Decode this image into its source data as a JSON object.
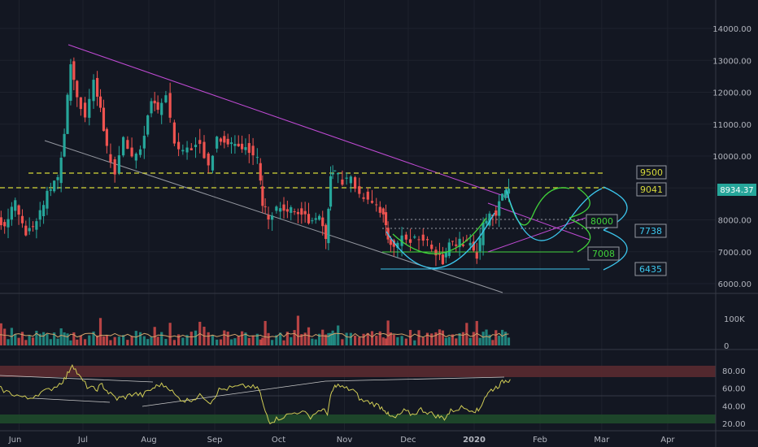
{
  "chart_data": [
    {
      "type": "candlestick",
      "panel": "price",
      "x": [
        "2019-05-21",
        "2019-05-26",
        "2019-05-31",
        "2019-06-05",
        "2019-06-10",
        "2019-06-15",
        "2019-06-20",
        "2019-06-23",
        "2019-06-26",
        "2019-06-29",
        "2019-07-03",
        "2019-07-07",
        "2019-07-10",
        "2019-07-13",
        "2019-07-17",
        "2019-07-21",
        "2019-07-25",
        "2019-07-29",
        "2019-08-03",
        "2019-08-06",
        "2019-08-10",
        "2019-08-14",
        "2019-08-18",
        "2019-08-22",
        "2019-08-26",
        "2019-08-30",
        "2019-09-03",
        "2019-09-08",
        "2019-09-13",
        "2019-09-18",
        "2019-09-22",
        "2019-09-24",
        "2019-09-27",
        "2019-10-01",
        "2019-10-06",
        "2019-10-11",
        "2019-10-16",
        "2019-10-21",
        "2019-10-24",
        "2019-10-26",
        "2019-10-28",
        "2019-11-01",
        "2019-11-05",
        "2019-11-09",
        "2019-11-13",
        "2019-11-17",
        "2019-11-20",
        "2019-11-22",
        "2019-11-25",
        "2019-11-29",
        "2019-12-03",
        "2019-12-07",
        "2019-12-11",
        "2019-12-15",
        "2019-12-18",
        "2019-12-21",
        "2019-12-26",
        "2019-12-31",
        "2020-01-03",
        "2020-01-06",
        "2020-01-09",
        "2020-01-12",
        "2020-01-15",
        "2020-01-18"
      ],
      "close": [
        8000,
        7900,
        8500,
        7600,
        7900,
        8800,
        9300,
        10800,
        12900,
        11900,
        11200,
        12300,
        11400,
        10200,
        9500,
        10500,
        10000,
        10200,
        11700,
        11400,
        11900,
        10300,
        10200,
        10300,
        10500,
        9600,
        10600,
        10400,
        10400,
        10200,
        9900,
        8500,
        8100,
        8400,
        8300,
        8300,
        8000,
        8200,
        7400,
        9300,
        9500,
        9200,
        9300,
        8800,
        8700,
        8500,
        8100,
        7500,
        7100,
        7500,
        7300,
        7500,
        7300,
        7000,
        6700,
        7200,
        7300,
        7200,
        6900,
        7800,
        8100,
        8200,
        8800,
        8934.37
      ],
      "yticks": [
        "14000.00",
        "13000.00",
        "12000.00",
        "11000.00",
        "10000.00",
        "9000.00",
        "8000.00",
        "7000.00",
        "6000.00"
      ],
      "xticks": [
        "Jun",
        "Jul",
        "Aug",
        "Sep",
        "Oct",
        "Nov",
        "Dec",
        "2020",
        "Feb",
        "Mar",
        "Apr"
      ],
      "last_price": "8934.37",
      "levels": [
        {
          "label": "9500",
          "value": 9500
        },
        {
          "label": "9041",
          "value": 9041
        },
        {
          "label": "8000",
          "value": 8000
        },
        {
          "label": "7738",
          "value": 7738
        },
        {
          "label": "7008",
          "value": 7008
        },
        {
          "label": "6435",
          "value": 6435
        }
      ],
      "colors": {
        "up": "#26a69a",
        "down": "#ef5350",
        "background": "#131722",
        "yellow": "#d6d83a",
        "magenta": "#c24bd6",
        "blue": "#3cc7ee",
        "green": "#41d23a",
        "text": "#b2b5be"
      }
    },
    {
      "type": "bar",
      "panel": "volume",
      "yticks": [
        "100K",
        "0"
      ]
    },
    {
      "type": "line",
      "panel": "rsi",
      "values": [
        62,
        56,
        52,
        48,
        54,
        58,
        65,
        72,
        88,
        74,
        62,
        58,
        64,
        55,
        48,
        50,
        54,
        52,
        60,
        64,
        62,
        50,
        46,
        48,
        52,
        44,
        58,
        60,
        62,
        62,
        58,
        38,
        22,
        26,
        30,
        34,
        28,
        36,
        32,
        55,
        64,
        60,
        58,
        46,
        44,
        40,
        36,
        28,
        26,
        34,
        30,
        36,
        32,
        28,
        26,
        34,
        38,
        36,
        34,
        50,
        58,
        62,
        68,
        70
      ],
      "yticks": [
        "80.00",
        "60.00",
        "40.00",
        "20.00"
      ],
      "bands": {
        "upper": 80,
        "lower": 20
      }
    }
  ]
}
